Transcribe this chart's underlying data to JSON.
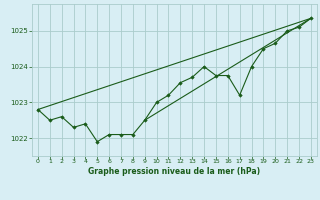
{
  "title": "Graphe pression niveau de la mer (hPa)",
  "background_color": "#d8eef4",
  "grid_color": "#aacccc",
  "line_color": "#1a5c1a",
  "marker_color": "#1a5c1a",
  "xlim": [
    -0.5,
    23.5
  ],
  "ylim": [
    1021.5,
    1025.75
  ],
  "xticks": [
    0,
    1,
    2,
    3,
    4,
    5,
    6,
    7,
    8,
    9,
    10,
    11,
    12,
    13,
    14,
    15,
    16,
    17,
    18,
    19,
    20,
    21,
    22,
    23
  ],
  "yticks": [
    1022,
    1023,
    1024,
    1025
  ],
  "series1_x": [
    0,
    1,
    2,
    3,
    4,
    5,
    6,
    7,
    8,
    9,
    10,
    11,
    12,
    13,
    14,
    15,
    16,
    17,
    18,
    19,
    20,
    21,
    22,
    23
  ],
  "series1_y": [
    1022.8,
    1022.5,
    1022.6,
    1022.3,
    1022.4,
    1021.9,
    1022.1,
    1022.1,
    1022.1,
    1022.5,
    1023.0,
    1023.2,
    1023.55,
    1023.7,
    1024.0,
    1023.75,
    1023.75,
    1023.2,
    1024.0,
    1024.5,
    1024.65,
    1025.0,
    1025.1,
    1025.35
  ],
  "trend1_x": [
    0,
    23
  ],
  "trend1_y": [
    1022.8,
    1025.35
  ],
  "trend2_x": [
    9,
    23
  ],
  "trend2_y": [
    1022.5,
    1025.35
  ]
}
